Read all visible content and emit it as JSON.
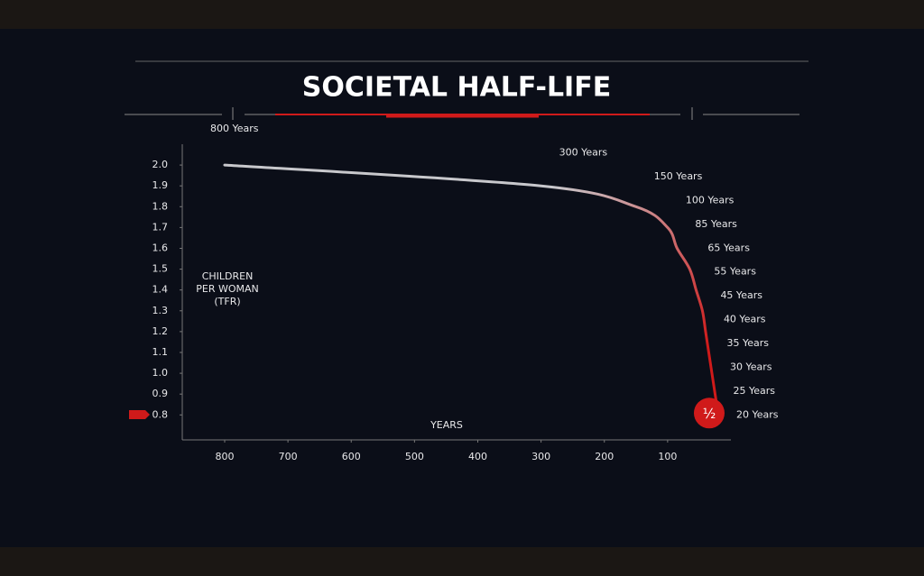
{
  "chart_data": {
    "type": "line",
    "title": "SOCIETAL HALF-LIFE",
    "y_label": [
      "CHILDREN",
      "PER WOMAN",
      "(TFR)"
    ],
    "x_label": "YEARS",
    "x": [
      800,
      300,
      150,
      100,
      85,
      65,
      55,
      45,
      40,
      35,
      30,
      25,
      20
    ],
    "values": [
      2.0,
      1.9,
      1.8,
      1.7,
      1.6,
      1.5,
      1.4,
      1.3,
      1.2,
      1.1,
      1.0,
      0.9,
      0.8
    ],
    "value_labels": [
      "800 Years",
      "300 Years",
      "150 Years",
      "100 Years",
      "85 Years",
      "65 Years",
      "55 Years",
      "45 Years",
      "40 Years",
      "35 Years",
      "30 Years",
      "25 Years",
      "20 Years"
    ],
    "end_marker_label": "½",
    "xlim": [
      867,
      0
    ],
    "ylim": [
      0.68,
      2.1
    ],
    "xticks": [
      800,
      700,
      600,
      500,
      400,
      300,
      200,
      100
    ],
    "yticks": [
      {
        "value": 2.0,
        "label": "2.0"
      },
      1.9,
      1.8,
      1.7,
      1.6,
      1.5,
      1.4,
      1.3,
      1.2,
      1.1,
      {
        "value": 1.0,
        "label": "1.0"
      },
      0.9,
      0.8
    ],
    "color_start": "#c8c8cc",
    "color_end": "#d01a1a"
  }
}
